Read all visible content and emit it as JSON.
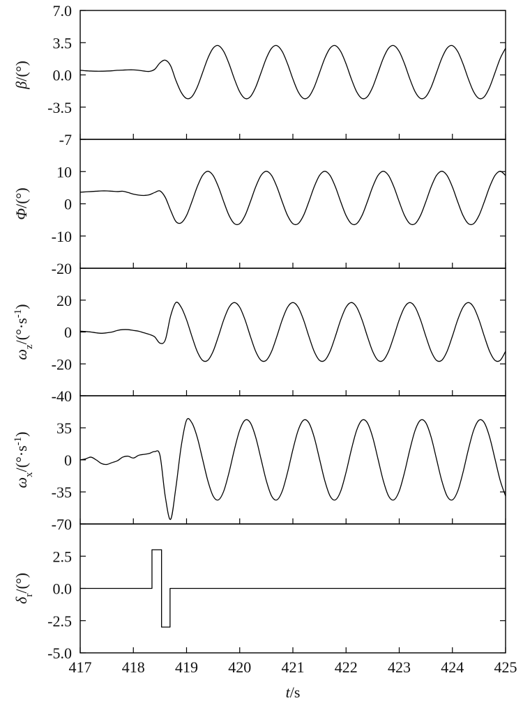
{
  "chart_data": [
    {
      "type": "line",
      "ylabel": [
        {
          "text": "β",
          "style": "italic"
        },
        {
          "text": "/(°)",
          "style": "normal"
        }
      ],
      "xlim": [
        417,
        425
      ],
      "xticks": [
        417,
        418,
        419,
        420,
        421,
        422,
        423,
        424,
        425
      ],
      "ylim": [
        -7,
        7
      ],
      "yticks": [
        {
          "value": 7,
          "label": "7.0"
        },
        3.5,
        {
          "value": 0,
          "label": "0.0"
        },
        -3.5,
        -7
      ],
      "series": [
        {
          "color": "#000000",
          "x": [
            417,
            417.1,
            417.2,
            417.3,
            417.4,
            417.5,
            417.6,
            417.7,
            417.8,
            417.9,
            418,
            418.1,
            418.2,
            418.3,
            418.4,
            418.5,
            418.6,
            418.7,
            418.8,
            418.9,
            419,
            419.1,
            419.2,
            419.3,
            419.4,
            419.5,
            419.6,
            419.7,
            419.8,
            419.9,
            420,
            420.1,
            420.2,
            420.3,
            420.4,
            420.5,
            420.6,
            420.7,
            420.8,
            420.9,
            421,
            421.1,
            421.2,
            421.3,
            421.4,
            421.5,
            421.6,
            421.7,
            421.8,
            421.9,
            422,
            422.1,
            422.2,
            422.3,
            422.4,
            422.5,
            422.6,
            422.7,
            422.8,
            422.9,
            423,
            423.1,
            423.2,
            423.3,
            423.4,
            423.5,
            423.6,
            423.7,
            423.8,
            423.9,
            424,
            424.1,
            424.2,
            424.3,
            424.4,
            424.5,
            424.6,
            424.7,
            424.8,
            424.9,
            425
          ],
          "values": [
            0.5,
            0.45,
            0.42,
            0.4,
            0.4,
            0.42,
            0.45,
            0.5,
            0.52,
            0.55,
            0.55,
            0.5,
            0.42,
            0.38,
            0.6,
            1.3,
            1.6,
            1.0,
            -0.6,
            -1.9,
            -2.56,
            -2.37,
            -1.34,
            0.22,
            1.8,
            2.9,
            3.18,
            2.54,
            1.2,
            -0.44,
            -1.84,
            -2.56,
            -2.37,
            -1.34,
            0.22,
            1.8,
            2.9,
            3.18,
            2.54,
            1.2,
            -0.44,
            -1.84,
            -2.56,
            -2.37,
            -1.34,
            0.22,
            1.8,
            2.9,
            3.18,
            2.54,
            1.2,
            -0.44,
            -1.84,
            -2.56,
            -2.37,
            -1.34,
            0.22,
            1.8,
            2.9,
            3.18,
            2.54,
            1.2,
            -0.44,
            -1.84,
            -2.56,
            -2.37,
            -1.34,
            0.22,
            1.8,
            2.9,
            3.18,
            2.54,
            1.2,
            -0.44,
            -1.84,
            -2.56,
            -2.37,
            -1.34,
            0.22,
            1.8,
            2.9
          ]
        }
      ]
    },
    {
      "type": "line",
      "ylabel": [
        {
          "text": "Φ",
          "style": "italic"
        },
        {
          "text": "/(°)",
          "style": "normal"
        }
      ],
      "xlim": [
        417,
        425
      ],
      "xticks": [
        417,
        418,
        419,
        420,
        421,
        422,
        423,
        424,
        425
      ],
      "ylim": [
        -20,
        20
      ],
      "yticks": [
        10,
        0,
        -10,
        -20
      ],
      "series": [
        {
          "color": "#000000",
          "x": [
            417,
            417.1,
            417.2,
            417.3,
            417.4,
            417.5,
            417.6,
            417.7,
            417.8,
            417.9,
            418,
            418.1,
            418.2,
            418.3,
            418.4,
            418.5,
            418.6,
            418.7,
            418.8,
            418.9,
            419,
            419.1,
            419.2,
            419.3,
            419.4,
            419.5,
            419.6,
            419.7,
            419.8,
            419.9,
            420,
            420.1,
            420.2,
            420.3,
            420.4,
            420.5,
            420.6,
            420.7,
            420.8,
            420.9,
            421,
            421.1,
            421.2,
            421.3,
            421.4,
            421.5,
            421.6,
            421.7,
            421.8,
            421.9,
            422,
            422.1,
            422.2,
            422.3,
            422.4,
            422.5,
            422.6,
            422.7,
            422.8,
            422.9,
            423,
            423.1,
            423.2,
            423.3,
            423.4,
            423.5,
            423.6,
            423.7,
            423.8,
            423.9,
            424,
            424.1,
            424.2,
            424.3,
            424.4,
            424.5,
            424.6,
            424.7,
            424.8,
            424.9,
            425
          ],
          "values": [
            3.6,
            3.7,
            3.8,
            3.9,
            4.0,
            4.0,
            3.9,
            3.8,
            3.9,
            3.5,
            3.0,
            2.7,
            2.6,
            2.8,
            3.5,
            4.0,
            2.0,
            -2.0,
            -5.5,
            -5.9,
            -3.64,
            0.62,
            5.24,
            8.78,
            10.1,
            8.78,
            5.24,
            0.62,
            -3.64,
            -6.16,
            -6.16,
            -3.64,
            0.62,
            5.24,
            8.78,
            10.1,
            8.78,
            5.24,
            0.62,
            -3.64,
            -6.16,
            -6.16,
            -3.64,
            0.62,
            5.24,
            8.78,
            10.1,
            8.78,
            5.24,
            0.62,
            -3.64,
            -6.16,
            -6.16,
            -3.64,
            0.62,
            5.24,
            8.78,
            10.1,
            8.78,
            5.24,
            0.62,
            -3.64,
            -6.16,
            -6.16,
            -3.64,
            0.62,
            5.24,
            8.78,
            10.1,
            8.78,
            5.24,
            0.62,
            -3.64,
            -6.16,
            -6.16,
            -3.64,
            0.62,
            5.24,
            8.78,
            10.1,
            8.78
          ]
        }
      ]
    },
    {
      "type": "line",
      "ylabel": [
        {
          "text": "ω",
          "style": "italic"
        },
        {
          "text": "z",
          "style": "sub"
        },
        {
          "text": "/(°·s",
          "style": "normal"
        },
        {
          "text": "-1",
          "style": "sup"
        },
        {
          "text": ")",
          "style": "normal"
        }
      ],
      "xlim": [
        417,
        425
      ],
      "xticks": [
        417,
        418,
        419,
        420,
        421,
        422,
        423,
        424,
        425
      ],
      "ylim": [
        -40,
        40
      ],
      "yticks": [
        20,
        0,
        -20,
        -40
      ],
      "series": [
        {
          "color": "#000000",
          "x": [
            417,
            417.1,
            417.2,
            417.3,
            417.4,
            417.5,
            417.6,
            417.7,
            417.8,
            417.9,
            418,
            418.1,
            418.2,
            418.3,
            418.4,
            418.5,
            418.6,
            418.7,
            418.8,
            418.9,
            419,
            419.1,
            419.2,
            419.3,
            419.4,
            419.5,
            419.6,
            419.7,
            419.8,
            419.9,
            420,
            420.1,
            420.2,
            420.3,
            420.4,
            420.5,
            420.6,
            420.7,
            420.8,
            420.9,
            421,
            421.1,
            421.2,
            421.3,
            421.4,
            421.5,
            421.6,
            421.7,
            421.8,
            421.9,
            422,
            422.1,
            422.2,
            422.3,
            422.4,
            422.5,
            422.6,
            422.7,
            422.8,
            422.9,
            423,
            423.1,
            423.2,
            423.3,
            423.4,
            423.5,
            423.6,
            423.7,
            423.8,
            423.9,
            424,
            424.1,
            424.2,
            424.3,
            424.4,
            424.5,
            424.6,
            424.7,
            424.8,
            424.9,
            425
          ],
          "values": [
            0.5,
            0.3,
            0,
            -0.5,
            -0.8,
            -0.5,
            0,
            1,
            1.5,
            1.5,
            1.0,
            0.5,
            -0.5,
            -1.5,
            -3,
            -7,
            -5,
            10,
            18.5,
            15.5,
            7.68,
            -2.63,
            -12.12,
            -17.74,
            -17.74,
            -12.12,
            -2.63,
            7.68,
            15.56,
            18.5,
            15.56,
            7.68,
            -2.63,
            -12.12,
            -17.74,
            -17.74,
            -12.12,
            -2.63,
            7.68,
            15.56,
            18.5,
            15.56,
            7.68,
            -2.63,
            -12.12,
            -17.74,
            -17.74,
            -12.12,
            -2.63,
            7.68,
            15.56,
            18.5,
            15.56,
            7.68,
            -2.63,
            -12.12,
            -17.74,
            -17.74,
            -12.12,
            -2.63,
            7.68,
            15.56,
            18.5,
            15.56,
            7.68,
            -2.63,
            -12.12,
            -17.74,
            -17.74,
            -12.12,
            -2.63,
            7.68,
            15.56,
            18.5,
            15.56,
            7.68,
            -2.63,
            -12.12,
            -17.74,
            -17.74,
            -12.12
          ]
        }
      ]
    },
    {
      "type": "line",
      "ylabel": [
        {
          "text": "ω",
          "style": "italic"
        },
        {
          "text": "x",
          "style": "sub"
        },
        {
          "text": "/(°·s",
          "style": "normal"
        },
        {
          "text": "-1",
          "style": "sup"
        },
        {
          "text": ")",
          "style": "normal"
        }
      ],
      "xlim": [
        417,
        425
      ],
      "xticks": [
        417,
        418,
        419,
        420,
        421,
        422,
        423,
        424,
        425
      ],
      "ylim": [
        -70,
        70
      ],
      "yticks": [
        35,
        0,
        -35,
        -70
      ],
      "series": [
        {
          "color": "#000000",
          "x": [
            417,
            417.1,
            417.2,
            417.3,
            417.4,
            417.5,
            417.6,
            417.7,
            417.8,
            417.9,
            418,
            418.1,
            418.2,
            418.3,
            418.4,
            418.5,
            418.6,
            418.7,
            418.8,
            418.9,
            419,
            419.1,
            419.2,
            419.3,
            419.4,
            419.5,
            419.6,
            419.7,
            419.8,
            419.9,
            420,
            420.1,
            420.2,
            420.3,
            420.4,
            420.5,
            420.6,
            420.7,
            420.8,
            420.9,
            421,
            421.1,
            421.2,
            421.3,
            421.4,
            421.5,
            421.6,
            421.7,
            421.8,
            421.9,
            422,
            422.1,
            422.2,
            422.3,
            422.4,
            422.5,
            422.6,
            422.7,
            422.8,
            422.9,
            423,
            423.1,
            423.2,
            423.3,
            423.4,
            423.5,
            423.6,
            423.7,
            423.8,
            423.9,
            424,
            424.1,
            424.2,
            424.3,
            424.4,
            424.5,
            424.6,
            424.7,
            424.8,
            424.9,
            425
          ],
          "values": [
            0,
            1,
            3,
            0,
            -4,
            -5,
            -3,
            -1,
            3,
            4,
            2,
            5,
            6,
            7,
            9,
            5,
            -40,
            -65,
            -30,
            15,
            43.3,
            40.5,
            24.9,
            1.2,
            -22.7,
            -39.5,
            -43.7,
            -34.1,
            -13.6,
            11.2,
            32.4,
            43.3,
            40.5,
            24.9,
            1.2,
            -22.7,
            -39.5,
            -43.7,
            -34.1,
            -13.6,
            11.2,
            32.4,
            43.3,
            40.5,
            24.9,
            1.2,
            -22.7,
            -39.5,
            -43.7,
            -34.1,
            -13.6,
            11.2,
            32.4,
            43.3,
            40.5,
            24.9,
            1.2,
            -22.7,
            -39.5,
            -43.7,
            -34.1,
            -13.6,
            11.2,
            32.4,
            43.3,
            40.5,
            24.9,
            1.2,
            -22.7,
            -39.5,
            -43.7,
            -34.1,
            -13.6,
            11.2,
            32.4,
            43.3,
            40.5,
            24.9,
            1.2,
            -22.7,
            -39.5
          ]
        }
      ]
    },
    {
      "type": "step",
      "ylabel": [
        {
          "text": "δ",
          "style": "italic"
        },
        {
          "text": "r",
          "style": "sub"
        },
        {
          "text": "/(°)",
          "style": "normal"
        }
      ],
      "xlabel": [
        {
          "text": "t",
          "style": "italic"
        },
        {
          "text": "/s",
          "style": "normal"
        }
      ],
      "xlim": [
        417,
        425
      ],
      "xticks": [
        417,
        418,
        419,
        420,
        421,
        422,
        423,
        424,
        425
      ],
      "ylim": [
        -5,
        5
      ],
      "yticks": [
        2.5,
        {
          "value": 0,
          "label": "0.0"
        },
        -2.5,
        {
          "value": -5,
          "label": "-5.0"
        }
      ],
      "series": [
        {
          "color": "#000000",
          "x": [
            417,
            418.35,
            418.35,
            418.53,
            418.53,
            418.69,
            418.69,
            425
          ],
          "values": [
            0,
            0,
            3,
            3,
            -3,
            -3,
            0,
            0
          ]
        }
      ]
    }
  ]
}
